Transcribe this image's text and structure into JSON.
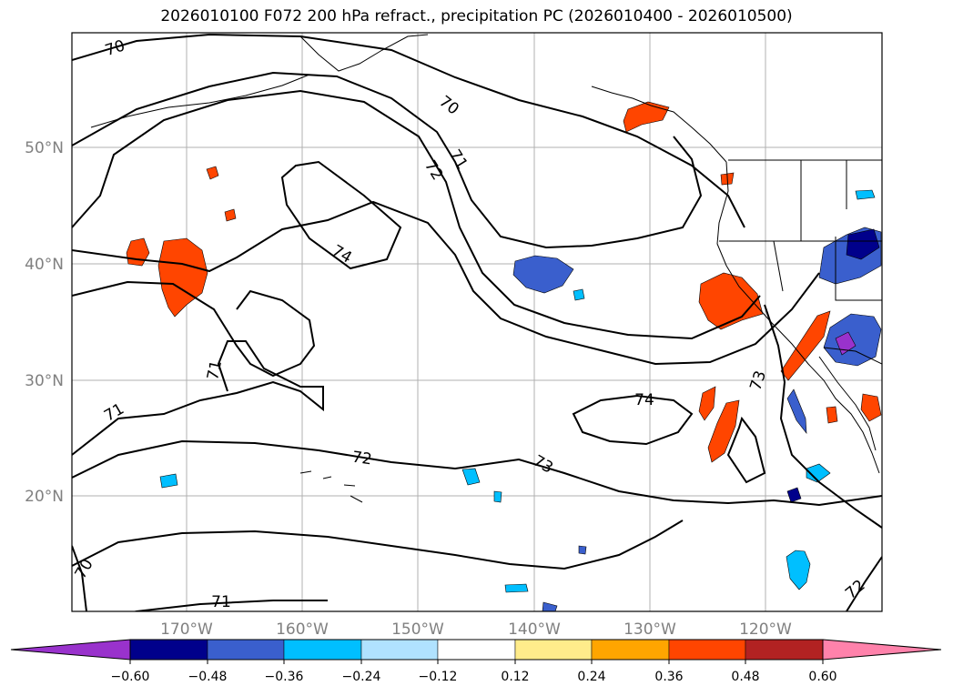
{
  "title": "2026010100 F072 200 hPa refract., precipitation PC (2026010400 - 2026010500)",
  "lat_labels": [
    "50°N",
    "40°N",
    "30°N",
    "20°N"
  ],
  "lon_labels": [
    "170°W",
    "160°W",
    "150°W",
    "140°W",
    "130°W",
    "120°W"
  ],
  "contour_labels": [
    "70",
    "70",
    "71",
    "72",
    "74",
    "71",
    "71",
    "74",
    "73",
    "72",
    "73",
    "71",
    "70",
    "72"
  ],
  "colorbar": {
    "ticks": [
      "−0.60",
      "−0.48",
      "−0.36",
      "−0.24",
      "−0.12",
      "0.12",
      "0.24",
      "0.36",
      "0.48",
      "0.60"
    ],
    "colors": [
      "#9932cc",
      "#00008b",
      "#3a5fcd",
      "#00bfff",
      "#b0e2ff",
      "#ffffff",
      "#ffec8b",
      "#ffa500",
      "#ff4500",
      "#b22222",
      "#ff82ab"
    ]
  },
  "colors": {
    "frame": "#000000",
    "grid": "#b0b0b0",
    "contour": "#000000",
    "tick_label": "#808080"
  }
}
